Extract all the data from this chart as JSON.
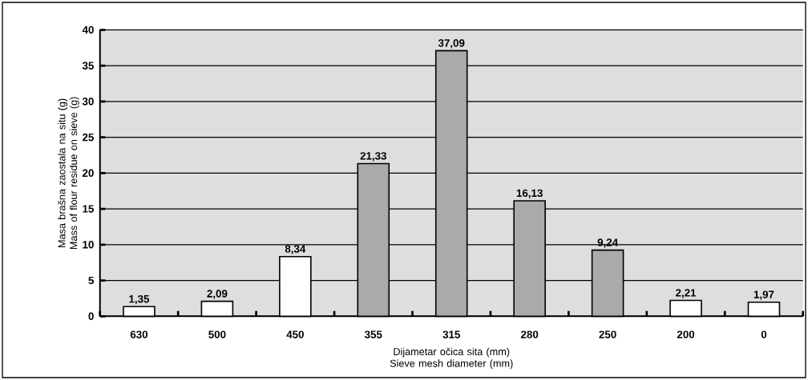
{
  "chart_data": {
    "type": "bar",
    "xlabel": "Dijametar očica sita (mm) Sieve mesh diameter (mm)",
    "ylabel": "Masa brašna zaostala na situ (g) Mass of flour residue on sieve (g)",
    "categories": [
      "630",
      "500",
      "450",
      "355",
      "315",
      "280",
      "250",
      "200",
      "0"
    ],
    "values": [
      1.35,
      2.09,
      8.34,
      21.33,
      37.09,
      16.13,
      9.24,
      2.21,
      1.97
    ],
    "colors": [
      "#ffffff",
      "#ffffff",
      "#ffffff",
      "#aaaaaa",
      "#aaaaaa",
      "#aaaaaa",
      "#aaaaaa",
      "#ffffff",
      "#ffffff"
    ],
    "value_labels": [
      "1,35",
      "2,09",
      "8,34",
      "21,33",
      "37,09",
      "16,13",
      "9,24",
      "2,21",
      "1,97"
    ],
    "ylim": [
      0,
      40
    ],
    "yticks": [
      0,
      5,
      10,
      15,
      20,
      25,
      30,
      35,
      40
    ],
    "grid": "y"
  }
}
